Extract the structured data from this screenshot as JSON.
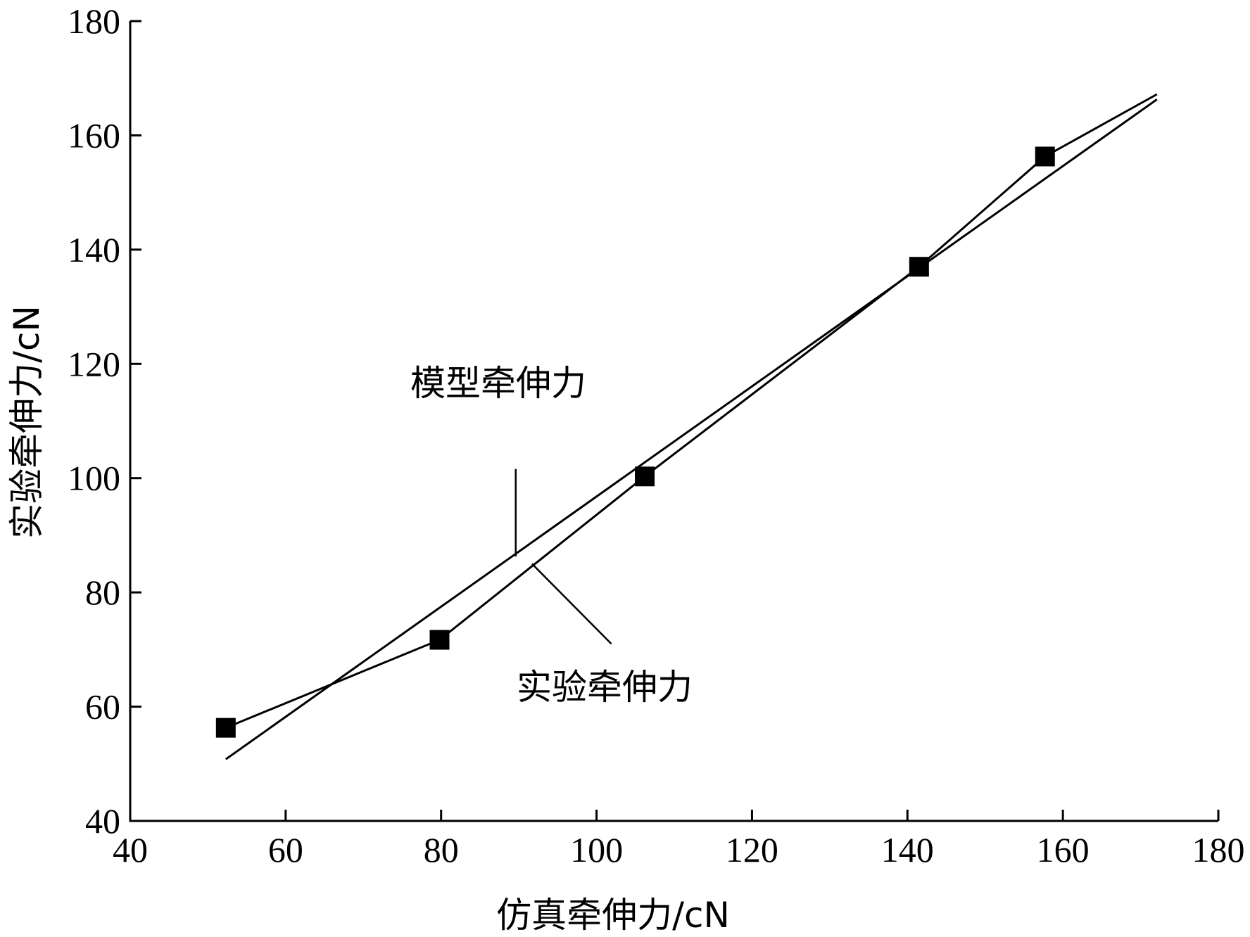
{
  "chart_data": {
    "type": "line",
    "xlabel": "仿真牵伸力/cN",
    "ylabel": "实验牵伸力/cN",
    "xlim": [
      40,
      180
    ],
    "ylim": [
      40,
      180
    ],
    "xticks": [
      40,
      60,
      80,
      100,
      120,
      140,
      160,
      180
    ],
    "yticks": [
      40,
      60,
      80,
      100,
      120,
      140,
      160,
      180
    ],
    "grid": false,
    "series": [
      {
        "name": "实验牵伸力",
        "marker": "square",
        "x": [
          52.3,
          79.8,
          106.2,
          141.5,
          157.7,
          172.1
        ],
        "y": [
          56.3,
          71.7,
          100.3,
          137.0,
          156.3,
          167.2
        ]
      },
      {
        "name": "模型牵伸力",
        "marker": "none",
        "x": [
          52.3,
          172.1
        ],
        "y": [
          50.8,
          166.3
        ]
      }
    ],
    "annotations": [
      {
        "text": "模型牵伸力",
        "leader_from": [
          89.6,
          86.3
        ],
        "leader_to": [
          89.6,
          101.6
        ]
      },
      {
        "text": "实验牵伸力",
        "leader_from": [
          91.7,
          85.0
        ],
        "leader_to": [
          101.9,
          71.0
        ]
      }
    ]
  }
}
